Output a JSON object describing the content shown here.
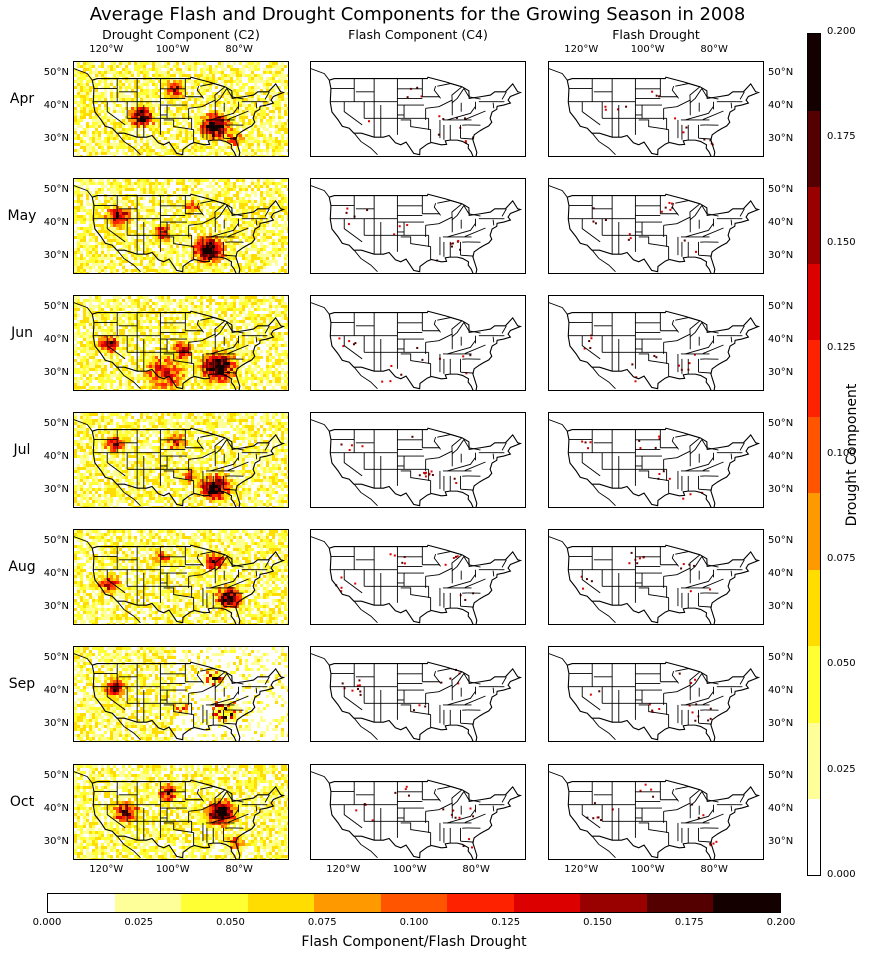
{
  "chart_data": {
    "type": "heatmap",
    "title": "Average Flash and Drought Components for the Growing Season in 2008",
    "columns": [
      "Drought Component (C2)",
      "Flash Component (C4)",
      "Flash Drought"
    ],
    "rows": [
      "Apr",
      "May",
      "Jun",
      "Jul",
      "Aug",
      "Sep",
      "Oct"
    ],
    "lon_ticks": [
      "120°W",
      "100°W",
      "80°W"
    ],
    "lat_ticks": [
      "50°N",
      "40°N",
      "30°N"
    ],
    "lon_range": [
      -130,
      -65
    ],
    "lat_range": [
      25,
      54
    ],
    "colorbar_vertical": {
      "label": "Drought Component",
      "ticks": [
        "0.000",
        "0.025",
        "0.050",
        "0.075",
        "0.100",
        "0.125",
        "0.150",
        "0.175",
        "0.200"
      ],
      "range": [
        0,
        0.2
      ]
    },
    "colorbar_horizontal": {
      "label": "Flash Component/Flash Drought",
      "ticks": [
        "0.000",
        "0.025",
        "0.050",
        "0.075",
        "0.100",
        "0.125",
        "0.150",
        "0.175",
        "0.200"
      ],
      "range": [
        0,
        0.2
      ]
    },
    "colormap": [
      "#ffffff",
      "#ffff99",
      "#ffff33",
      "#ffdd00",
      "#ff9900",
      "#ff5500",
      "#ff2200",
      "#dd0000",
      "#990000",
      "#550000",
      "#150000"
    ]
  }
}
